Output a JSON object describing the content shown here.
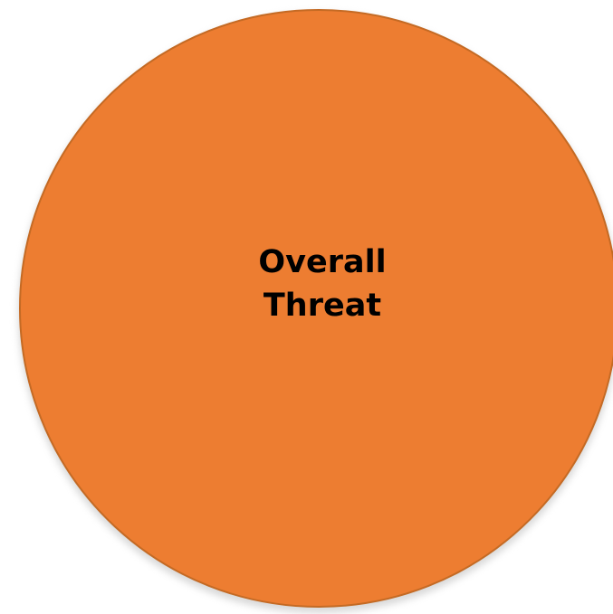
{
  "diagram": {
    "node": {
      "label_lines": [
        "Overall",
        "Threat"
      ],
      "fill_color": "#ed7d31",
      "border_color": "#c46a24"
    }
  }
}
